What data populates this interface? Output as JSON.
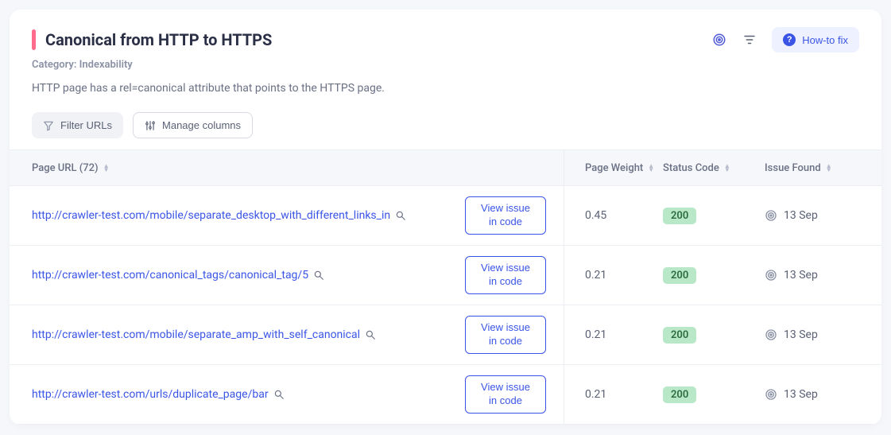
{
  "header": {
    "title": "Canonical from HTTP to HTTPS",
    "category_label": "Category:",
    "category_value": "Indexability",
    "description": "HTTP page has a rel=canonical attribute that points to the HTTPS page.",
    "howto_label": "How-to fix",
    "severity_color": "#ff6b8a"
  },
  "toolbar": {
    "filter_label": "Filter URLs",
    "manage_label": "Manage columns"
  },
  "columns": {
    "url_label": "Page URL",
    "url_count": "72",
    "weight_label": "Page Weight",
    "status_label": "Status Code",
    "date_label": "Issue Found"
  },
  "view_issue_label": "View issue in code",
  "status_color": "#b9e8c8",
  "link_color": "#3a55e6",
  "rows": [
    {
      "url": "http://crawler-test.com/mobile/separate_desktop_with_different_links_in",
      "weight": "0.45",
      "status": "200",
      "date": "13 Sep"
    },
    {
      "url": "http://crawler-test.com/canonical_tags/canonical_tag/5",
      "weight": "0.21",
      "status": "200",
      "date": "13 Sep"
    },
    {
      "url": "http://crawler-test.com/mobile/separate_amp_with_self_canonical",
      "weight": "0.21",
      "status": "200",
      "date": "13 Sep"
    },
    {
      "url": "http://crawler-test.com/urls/duplicate_page/bar",
      "weight": "0.21",
      "status": "200",
      "date": "13 Sep"
    }
  ]
}
